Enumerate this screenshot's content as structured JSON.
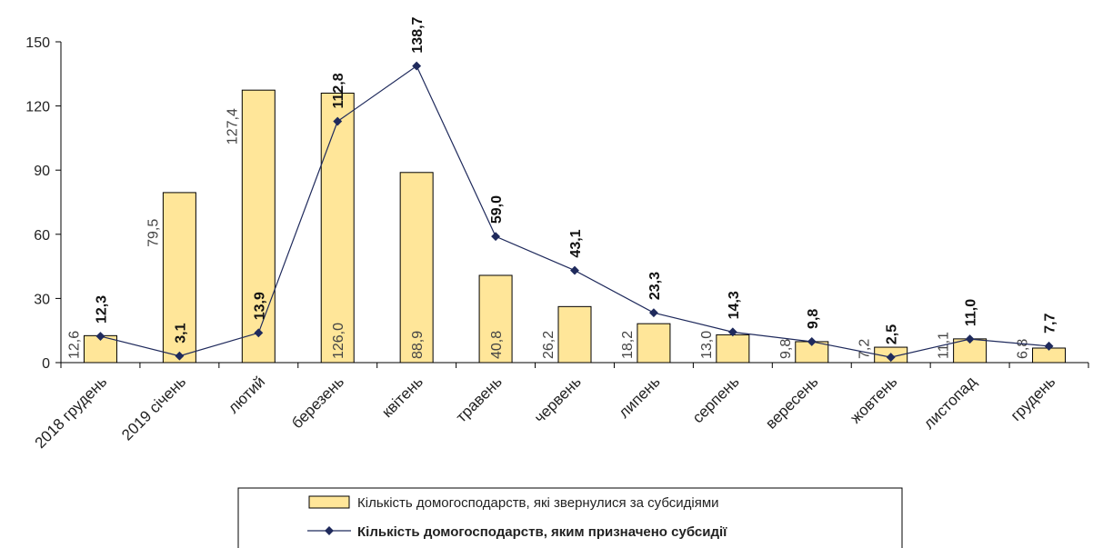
{
  "chart_data": {
    "type": "bar",
    "categories": [
      "2018 грудень",
      "2019 січень",
      "лютий",
      "березень",
      "квітень",
      "травень",
      "червень",
      "липень",
      "серпень",
      "вересень",
      "жовтень",
      "листопад",
      "грудень"
    ],
    "series": [
      {
        "name": "Кількість домогосподарств, які звернулися за субсидіями",
        "type": "bar",
        "values": [
          12.6,
          79.5,
          127.4,
          126.0,
          88.9,
          40.8,
          26.2,
          18.2,
          13.0,
          9.8,
          7.2,
          11.1,
          6.8
        ],
        "labels": [
          "12,6",
          "79,5",
          "127,4",
          "126,0",
          "88,9",
          "40,8",
          "26,2",
          "18,2",
          "13,0",
          "9,8",
          "7,2",
          "11,1",
          "6,8"
        ],
        "color": "#FFE699"
      },
      {
        "name": "Кількість домогосподарств, яким призначено субсидії",
        "type": "line",
        "values": [
          12.3,
          3.1,
          13.9,
          112.8,
          138.7,
          59.0,
          43.1,
          23.3,
          14.3,
          9.8,
          2.5,
          11.0,
          7.7
        ],
        "labels": [
          "12,3",
          "3,1",
          "13,9",
          "112,8",
          "138,7",
          "59,0",
          "43,1",
          "23,3",
          "14,3",
          "9,8",
          "2,5",
          "11,0",
          "7,7"
        ],
        "color": "#1F2A5C"
      }
    ],
    "y_ticks": [
      "0",
      "30",
      "60",
      "90",
      "120",
      "150"
    ],
    "ylim": [
      0,
      150
    ],
    "grid": false,
    "legend_position": "bottom"
  }
}
